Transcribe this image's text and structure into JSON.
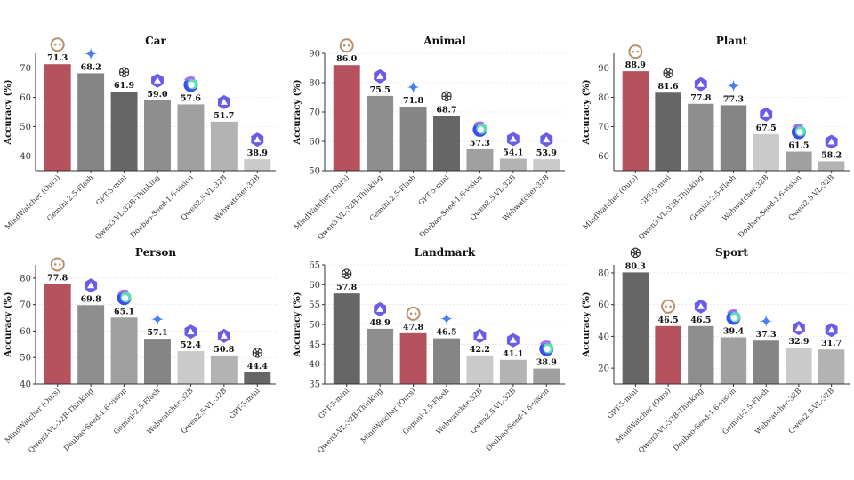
{
  "model_colors": {
    "MindWatcher (Ours)": "#b5525e",
    "GPT-5-mini": "#666666",
    "Gemini-2.5-Flash": "#858585",
    "Qwen3-VL-32B-Thinking": "#8e8e8e",
    "Doubao-Seed-1.6-vision": "#a0a0a0",
    "Qwen2.5-VL-32B": "#b3b3b3",
    "Webwatcher-32B": "#cacaca"
  },
  "model_icons": {
    "MindWatcher (Ours)": "smiley-face-icon",
    "GPT-5-mini": "openai-logo-icon",
    "Gemini-2.5-Flash": "gemini-star-icon",
    "Qwen3-VL-32B-Thinking": "qwen-logo-icon",
    "Doubao-Seed-1.6-vision": "doubao-logo-icon",
    "Qwen2.5-VL-32B": "qwen-logo-icon",
    "Webwatcher-32B": "qwen-logo-icon"
  },
  "chart_data": [
    {
      "type": "bar",
      "title": "Car",
      "ylabel": "Accuracy (%)",
      "ylim": [
        35,
        75
      ],
      "yticks": [
        40,
        50,
        60,
        70
      ],
      "grid": true,
      "categories": [
        "MindWatcher (Ours)",
        "Gemini-2.5-Flash",
        "GPT-5-mini",
        "Qwen3-VL-32B-Thinking",
        "Doubao-Seed-1.6-vision",
        "Qwen2.5-VL-32B",
        "Webwatcher-32B"
      ],
      "values": [
        71.3,
        68.2,
        61.9,
        59.0,
        57.6,
        51.7,
        38.9
      ]
    },
    {
      "type": "bar",
      "title": "Animal",
      "ylabel": "Accuracy (%)",
      "ylim": [
        50,
        90
      ],
      "yticks": [
        50,
        60,
        70,
        80,
        90
      ],
      "grid": true,
      "categories": [
        "MindWatcher (Ours)",
        "Qwen3-VL-32B-Thinking",
        "Gemini-2.5-Flash",
        "GPT-5-mini",
        "Doubao-Seed-1.6-vision",
        "Qwen2.5-VL-32B",
        "Webwatcher-32B"
      ],
      "values": [
        86.0,
        75.5,
        71.8,
        68.7,
        57.3,
        54.1,
        53.9
      ]
    },
    {
      "type": "bar",
      "title": "Plant",
      "ylabel": "Accuracy (%)",
      "ylim": [
        55,
        95
      ],
      "yticks": [
        60,
        70,
        80,
        90
      ],
      "grid": true,
      "categories": [
        "MindWatcher (Ours)",
        "GPT-5-mini",
        "Qwen3-VL-32B-Thinking",
        "Gemini-2.5-Flash",
        "Webwatcher-32B",
        "Doubao-Seed-1.6-vision",
        "Qwen2.5-VL-32B"
      ],
      "values": [
        88.9,
        81.6,
        77.8,
        77.3,
        67.5,
        61.5,
        58.2
      ]
    },
    {
      "type": "bar",
      "title": "Person",
      "ylabel": "Accuracy (%)",
      "ylim": [
        40,
        85
      ],
      "yticks": [
        40,
        50,
        60,
        70,
        80
      ],
      "grid": true,
      "categories": [
        "MindWatcher (Ours)",
        "Qwen3-VL-32B-Thinking",
        "Doubao-Seed-1.6-vision",
        "Gemini-2.5-Flash",
        "Webwatcher-32B",
        "Qwen2.5-VL-32B",
        "GPT-5-mini"
      ],
      "values": [
        77.8,
        69.8,
        65.1,
        57.1,
        52.4,
        50.8,
        44.4
      ]
    },
    {
      "type": "bar",
      "title": "Landmark",
      "ylabel": "Accuracy (%)",
      "ylim": [
        35,
        65
      ],
      "yticks": [
        35,
        40,
        45,
        50,
        55,
        60,
        65
      ],
      "grid": true,
      "categories": [
        "GPT-5-mini",
        "Qwen3-VL-32B-Thinking",
        "MindWatcher (Ours)",
        "Gemini-2.5-Flash",
        "Webwatcher-32B",
        "Qwen2.5-VL-32B",
        "Doubao-Seed-1.6-vision"
      ],
      "values": [
        57.8,
        48.9,
        47.8,
        46.5,
        42.2,
        41.1,
        38.9
      ]
    },
    {
      "type": "bar",
      "title": "Sport",
      "ylabel": "Accuracy (%)",
      "ylim": [
        10,
        85
      ],
      "yticks": [
        20,
        40,
        60,
        80
      ],
      "grid": true,
      "categories": [
        "GPT-5-mini",
        "MindWatcher (Ours)",
        "Qwen3-VL-32B-Thinking",
        "Doubao-Seed-1.6-vision",
        "Gemini-2.5-Flash",
        "Webwatcher-32B",
        "Qwen2.5-VL-32B"
      ],
      "values": [
        80.3,
        46.5,
        46.5,
        39.4,
        37.3,
        32.9,
        31.7
      ]
    }
  ]
}
